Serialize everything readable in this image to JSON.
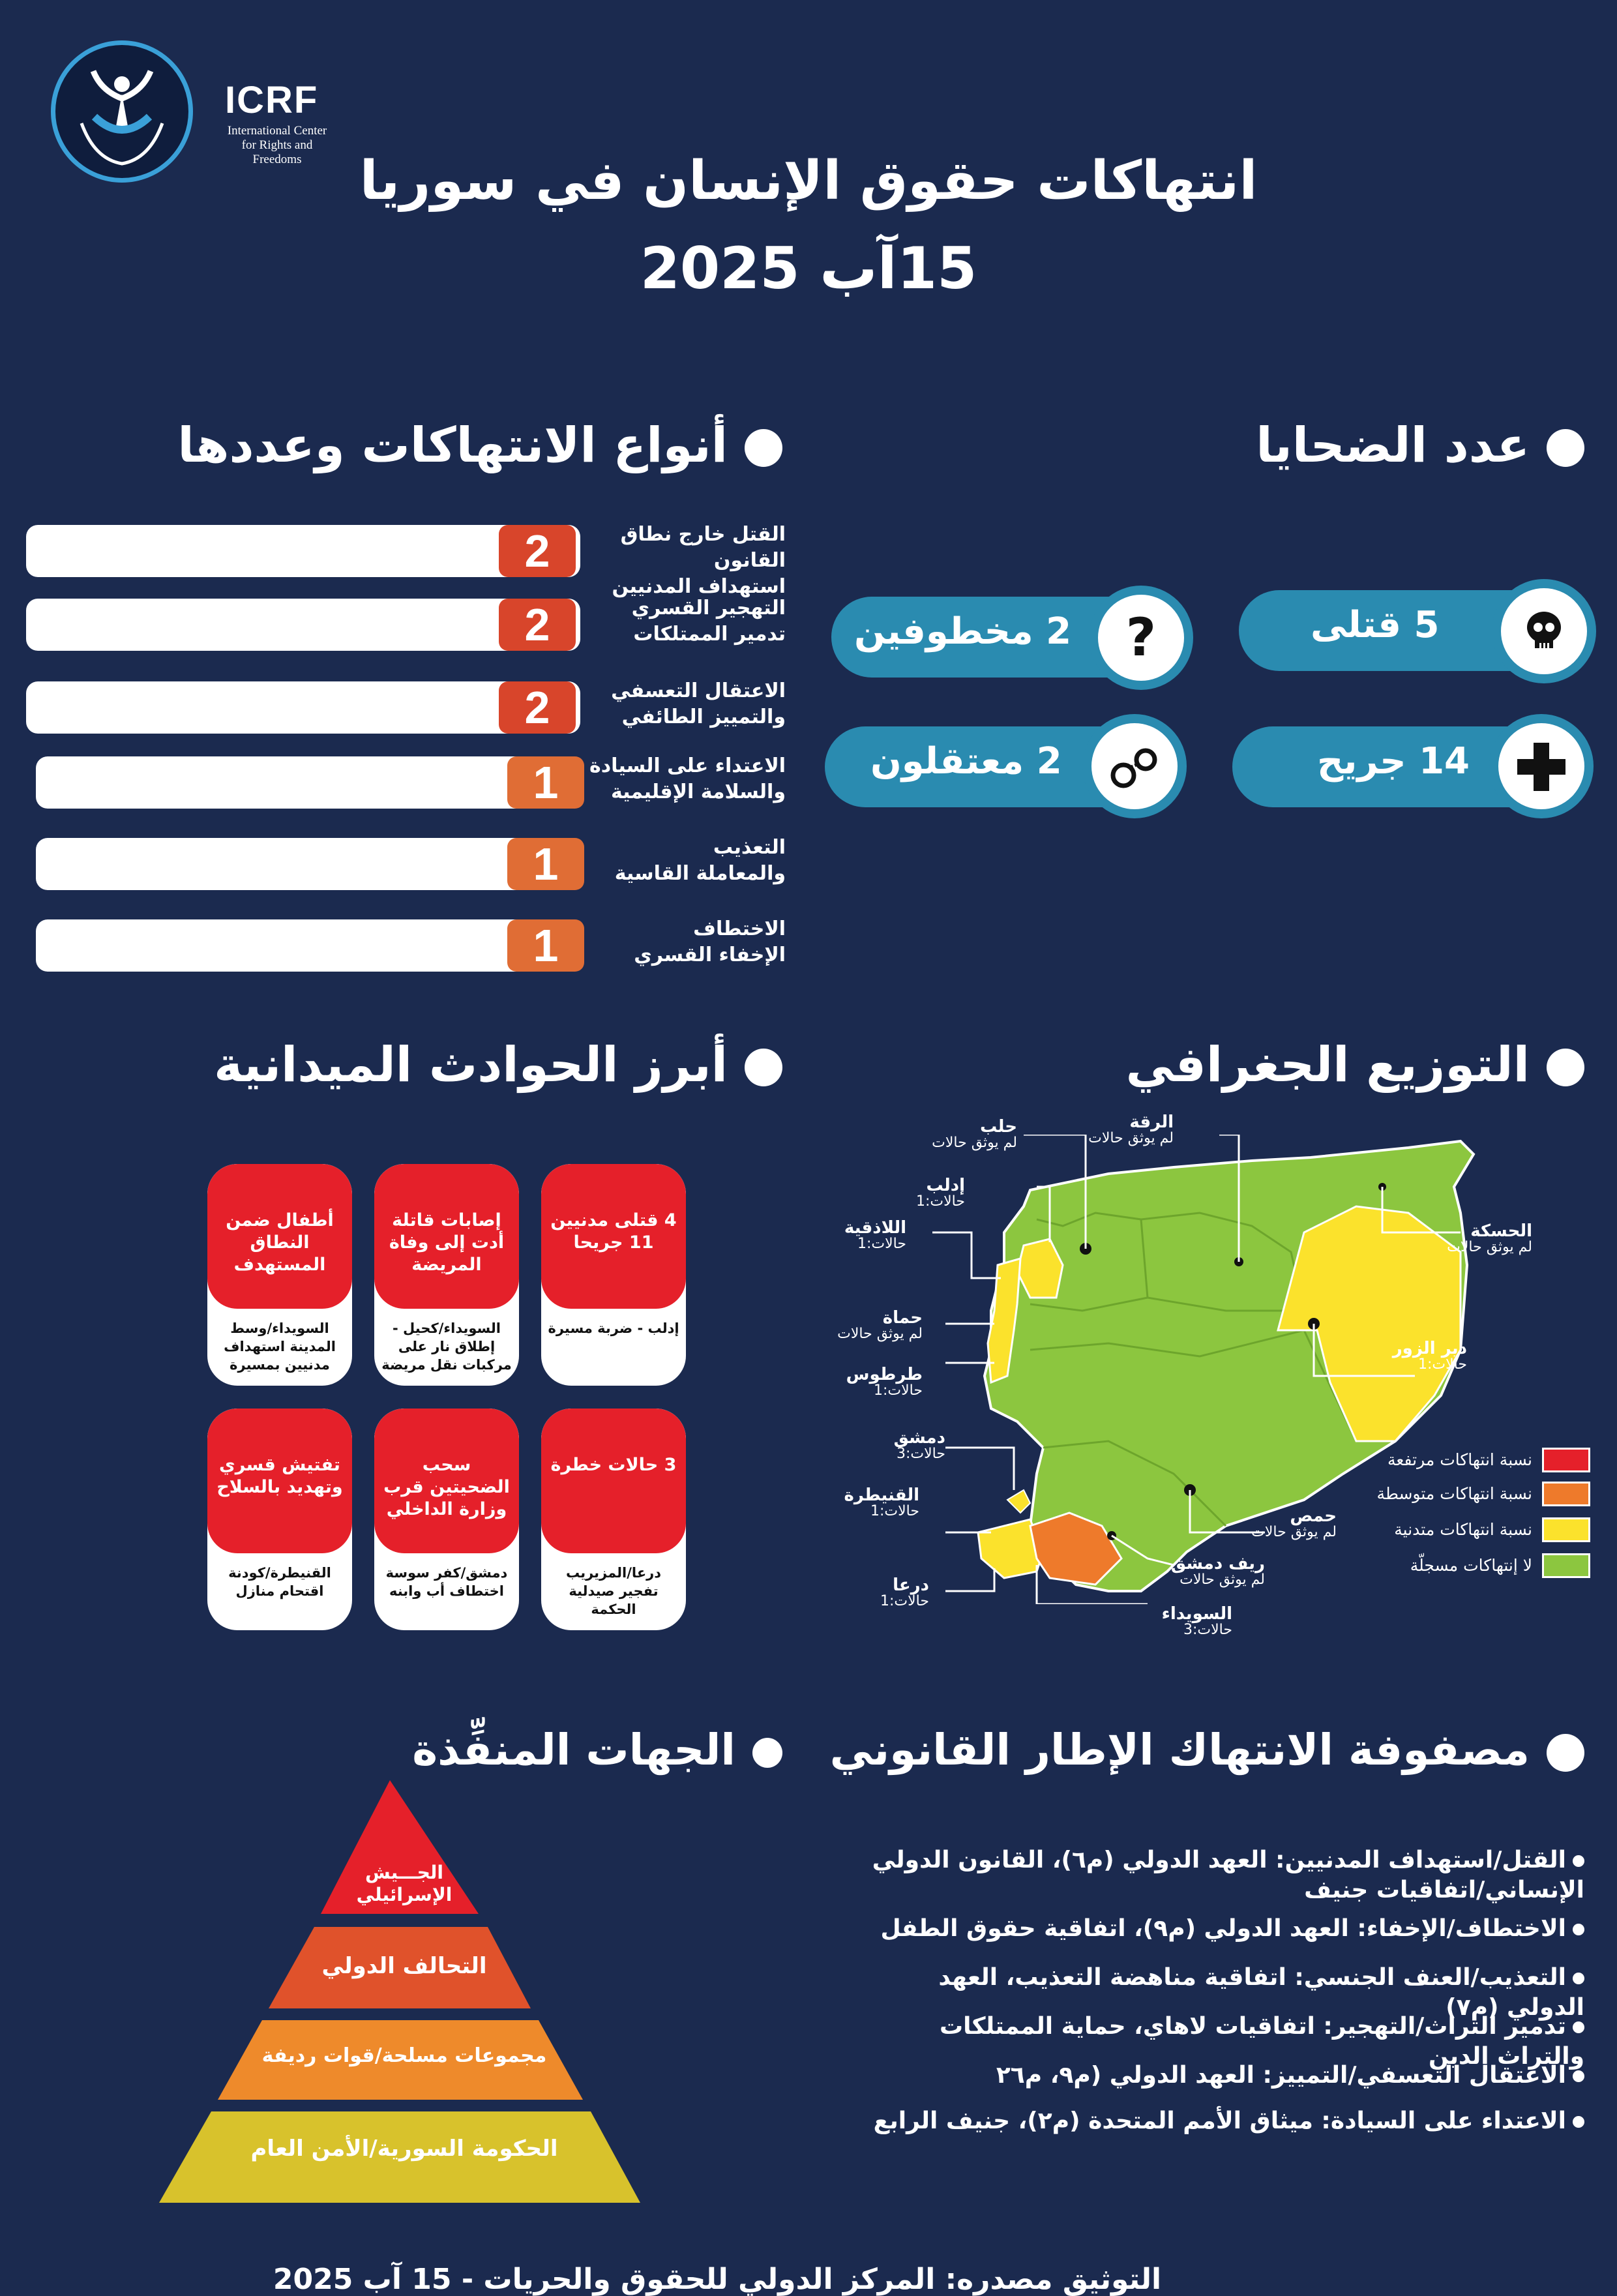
{
  "header": {
    "logo_name": "ICRF",
    "logo_sub_line1": "International Center",
    "logo_sub_line2": "for Rights and Freedoms",
    "title": "انتهاكات حقوق الإنسان في سوريا",
    "date": "15آب 2025"
  },
  "violations": {
    "title": "أنواع الانتهاكات وعددها",
    "items": [
      {
        "label1": "القتل خارج نطاق القانون",
        "label2": "استهداف المدنيين",
        "value": "2",
        "color": "#d8452b"
      },
      {
        "label1": "التهجير القسري",
        "label2": "تدمير الممتلكات",
        "value": "2",
        "color": "#d8452b"
      },
      {
        "label1": "الاعتقال التعسفي",
        "label2": "والتمييز الطائفي",
        "value": "2",
        "color": "#d8452b"
      },
      {
        "label1": "الاعتداء على السيادة",
        "label2": "والسلامة الإقليمية",
        "value": "1",
        "color": "#e06d35"
      },
      {
        "label1": "التعذيب",
        "label2": "والمعاملة القاسية",
        "value": "1",
        "color": "#e06d35"
      },
      {
        "label1": "الاختطاف",
        "label2": "الإخفاء القسري",
        "value": "1",
        "color": "#e06d35"
      }
    ]
  },
  "victims": {
    "title": "عدد الضحايا",
    "killed": "5 قتلى",
    "kidnapped": "2 مخطوفين",
    "injured": "14  جريح",
    "detained": "2 معتقلون",
    "icons": [
      "skull-icon",
      "question-icon",
      "plus-icon",
      "handcuffs-icon"
    ]
  },
  "incidents": {
    "title": "أبرز الحوادث الميدانية",
    "cards": [
      {
        "top": "4 قتلى مدنيين 11 جريحا",
        "bottom": "إدلب - ضربة مسيرة"
      },
      {
        "top": "إصابات قاتلة أدت إلى وفاة المريضة",
        "bottom": "السويداء/كحيل - إطلاق نار على مركبات نقل مريضة"
      },
      {
        "top": "أطفال ضمن النطاق المستهدف",
        "bottom": "السويداء/وسط المدينة استهداف مدنيين بمسيرة"
      },
      {
        "top": "3 حالات خطرة",
        "bottom": "درعا/المزيريب تفجير صيدلية الحكمة"
      },
      {
        "top": "سحب الضحيتين قرب وزارة الداخلي",
        "bottom": "دمشق/كفر سوسة اختطاف أب وابنه"
      },
      {
        "top": "تفتيش قسري وتهديد بالسلاح",
        "bottom": "القنيطرة/كودنة اقتحام منازل"
      }
    ]
  },
  "geo": {
    "title": "التوزيع الجغرافي",
    "labels": {
      "aleppo": "حلب",
      "aleppo_sub": "لم يوثق حالات",
      "raqqa": "الرقة",
      "raqqa_sub": "لم يوثق حالات",
      "idlib": "إدلب",
      "idlib_sub": "حالات:1",
      "latakia": "اللاذقية",
      "latakia_sub": "حالات:1",
      "hasakah": "الحسكة",
      "hasakah_sub": "لم يوثق حالات",
      "hama": "حماة",
      "hama_sub": "لم يوثق حالات",
      "tartus": "طرطوس",
      "tartus_sub": "حالات:1",
      "deir": "دير الزور",
      "deir_sub": "حالات:1",
      "damascus": "دمشق",
      "damascus_sub": "حالات:3",
      "quneitra": "القنيطرة",
      "quneitra_sub": "حالات:1",
      "homs": "حمص",
      "homs_sub": "لم يوثق حالات",
      "rifdimashq": "ريف دمشق",
      "rifdimashq_sub": "لم يوثق حالات",
      "daraa": "درعا",
      "daraa_sub": "حالات:1",
      "sweida": "السويداء",
      "sweida_sub": "حالات:3"
    },
    "legend": [
      {
        "label": "نسبة انتهاكات مرتفعة",
        "color": "#e5202a"
      },
      {
        "label": "نسبة انتهاكات متوسطة",
        "color": "#ee7a2b"
      },
      {
        "label": "نسبة انتهاكات متدنية",
        "color": "#fbe22c"
      },
      {
        "label": "لا إنتهاكات مسجلّة",
        "color": "#8cc63f"
      }
    ]
  },
  "perpetrators": {
    "title": "الجهات المنفِّذة",
    "levels": [
      "الجـــيش الإسرائيلي",
      "التحالف الدولي",
      "مجموعات مسلحة/قوات رديفة",
      "الحكومة السورية/الأمن العام"
    ]
  },
  "legal": {
    "title": "مصفوفة الانتهاك الإطار القانوني",
    "items": [
      "القتل/استهداف المدنيين: العهد الدولي (م٦)، القانون الدولي الإنساني/اتفاقيات جنيف",
      "الاختطاف/الإخفاء: العهد الدولي (م٩)، اتفاقية حقوق الطفل",
      "التعذيب/العنف الجنسي: اتفاقية مناهضة التعذيب، العهد الدولي (م٧)",
      "تدمير التراث/التهجير: اتفاقيات لاهاي، حماية الممتلكات والتراث الدين",
      "الاعتقال التعسفي/التمييز: العهد الدولي (م٩، م٢٦",
      "الاعتداء على السيادة: ميثاق الأمم المتحدة (م٢)، جنيف الرابع"
    ]
  },
  "footer": "التوثيق مصدره: المركز الدولي للحقوق والحريات - 15 آب 2025"
}
